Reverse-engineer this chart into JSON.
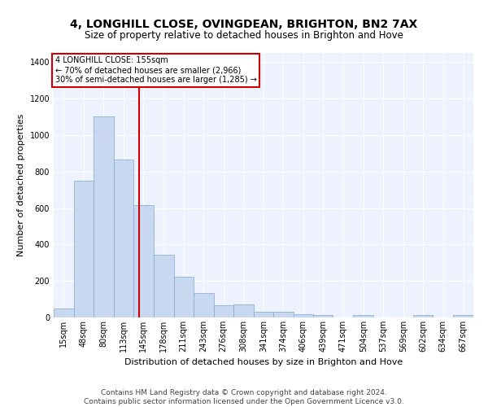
{
  "title1": "4, LONGHILL CLOSE, OVINGDEAN, BRIGHTON, BN2 7AX",
  "title2": "Size of property relative to detached houses in Brighton and Hove",
  "xlabel": "Distribution of detached houses by size in Brighton and Hove",
  "ylabel": "Number of detached properties",
  "footer1": "Contains HM Land Registry data © Crown copyright and database right 2024.",
  "footer2": "Contains public sector information licensed under the Open Government Licence v3.0.",
  "annotation_line1": "4 LONGHILL CLOSE: 155sqm",
  "annotation_line2": "← 70% of detached houses are smaller (2,966)",
  "annotation_line3": "30% of semi-detached houses are larger (1,285) →",
  "bar_color": "#c8d8f0",
  "bar_edge_color": "#7aaad0",
  "vline_color": "#cc0000",
  "vline_x": 155,
  "categories": [
    "15sqm",
    "48sqm",
    "80sqm",
    "113sqm",
    "145sqm",
    "178sqm",
    "211sqm",
    "243sqm",
    "276sqm",
    "308sqm",
    "341sqm",
    "374sqm",
    "406sqm",
    "439sqm",
    "471sqm",
    "504sqm",
    "537sqm",
    "569sqm",
    "602sqm",
    "634sqm",
    "667sqm"
  ],
  "bin_edges": [
    15,
    48,
    80,
    113,
    145,
    178,
    211,
    243,
    276,
    308,
    341,
    374,
    406,
    439,
    471,
    504,
    537,
    569,
    602,
    634,
    667,
    700
  ],
  "values": [
    50,
    750,
    1100,
    865,
    615,
    345,
    225,
    135,
    65,
    70,
    30,
    30,
    20,
    12,
    0,
    12,
    0,
    0,
    12,
    0,
    12
  ],
  "ylim": [
    0,
    1450
  ],
  "yticks": [
    0,
    200,
    400,
    600,
    800,
    1000,
    1200,
    1400
  ],
  "background_color": "#eef2ff",
  "grid_color": "#ffffff",
  "title1_fontsize": 10,
  "title2_fontsize": 8.5,
  "xlabel_fontsize": 8,
  "ylabel_fontsize": 8,
  "footer_fontsize": 6.5,
  "tick_fontsize": 7,
  "annotation_fontsize": 7
}
